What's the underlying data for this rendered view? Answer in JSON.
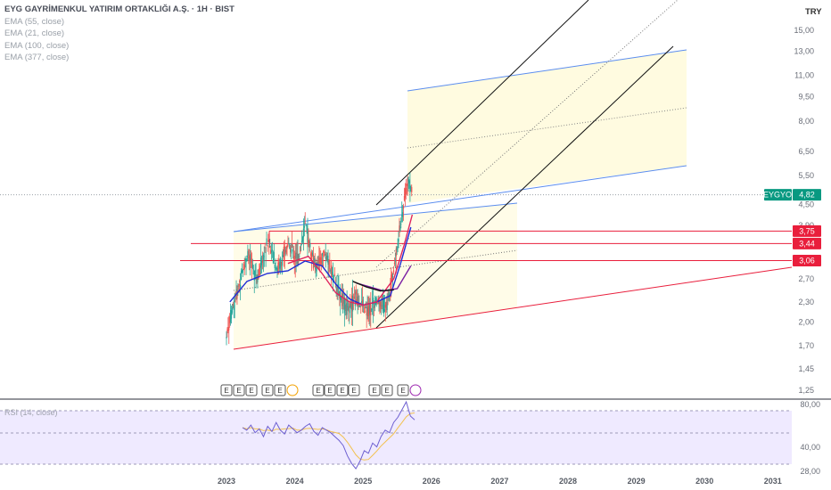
{
  "legend": {
    "title": "EYG GAYRİMENKUL YATIRIM ORTAKLIĞI A.Ş. · 1H · BIST",
    "lines": [
      "EMA (55, close)",
      "EMA (21, close)",
      "EMA (100, close)",
      "EMA (377, close)"
    ]
  },
  "currency": "TRY",
  "rsi_label": "RSI (14, close)",
  "symbol_tag": "EYGYO",
  "colors": {
    "candle_up": "#26a69a",
    "candle_down": "#ef5350",
    "ema55": "#1e2bd6",
    "ema21": "#e0245e",
    "ema100": "#7b1fa2",
    "ema377": "#111111",
    "channel_blue": "#5b8def",
    "red_line": "#e91e3c",
    "fill_yellow": "#fffbe0",
    "rsi_line": "#6d5fd0",
    "rsi_ma": "#f2c14e",
    "rsi_band": "#efeaff"
  },
  "chart_data": {
    "type": "candlestick",
    "title": "EYG GAYRİMENKUL YATIRIM ORTAKLIĞI A.Ş. · 1H · BIST",
    "currency": "TRY",
    "price_ticks": [
      "15,00",
      "13,00",
      "11,00",
      "9,50",
      "8,00",
      "6,50",
      "5,50",
      "4,50",
      "3,90",
      "2,70",
      "2,30",
      "2,00",
      "1,70",
      "1,45",
      "1,25"
    ],
    "year_ticks": [
      "2023",
      "2024",
      "2025",
      "2026",
      "2027",
      "2028",
      "2029",
      "2030",
      "2031"
    ],
    "last_price": {
      "symbol": "EYGYO",
      "value": "4,82"
    },
    "horizontal_levels": [
      "3,75",
      "3,44",
      "3,06"
    ],
    "price_range": [
      1.2,
      16.5
    ],
    "scale": "log",
    "ohlc_path": [
      [
        2023.0,
        1.85
      ],
      [
        2023.15,
        2.45
      ],
      [
        2023.3,
        3.2
      ],
      [
        2023.45,
        2.7
      ],
      [
        2023.6,
        3.5
      ],
      [
        2023.75,
        2.9
      ],
      [
        2023.9,
        3.4
      ],
      [
        2024.05,
        3.1
      ],
      [
        2024.15,
        3.9
      ],
      [
        2024.3,
        2.9
      ],
      [
        2024.45,
        3.2
      ],
      [
        2024.6,
        2.6
      ],
      [
        2024.75,
        2.2
      ],
      [
        2024.9,
        2.35
      ],
      [
        2025.05,
        2.15
      ],
      [
        2025.2,
        2.3
      ],
      [
        2025.35,
        2.25
      ],
      [
        2025.45,
        2.9
      ],
      [
        2025.55,
        3.9
      ],
      [
        2025.65,
        5.4
      ],
      [
        2025.72,
        4.82
      ]
    ],
    "rsi": {
      "label": "RSI (14, close)",
      "ticks": [
        "80,00",
        "40,00",
        "28,00"
      ],
      "values": [
        62,
        60,
        64,
        58,
        61,
        55,
        63,
        59,
        66,
        60,
        57,
        64,
        61,
        58,
        60,
        63,
        65,
        59,
        56,
        62,
        60,
        58,
        55,
        52,
        48,
        40,
        34,
        30,
        36,
        44,
        42,
        50,
        47,
        55,
        60,
        58,
        66,
        70,
        76,
        82,
        71,
        68
      ]
    },
    "ema_series": [
      {
        "name": "EMA (55, close)",
        "points": [
          [
            2023.05,
            2.3
          ],
          [
            2023.3,
            2.65
          ],
          [
            2023.6,
            2.8
          ],
          [
            2023.9,
            2.85
          ],
          [
            2024.15,
            3.05
          ],
          [
            2024.4,
            2.95
          ],
          [
            2024.6,
            2.6
          ],
          [
            2024.8,
            2.35
          ],
          [
            2025.0,
            2.25
          ],
          [
            2025.2,
            2.3
          ],
          [
            2025.4,
            2.4
          ],
          [
            2025.55,
            3.0
          ],
          [
            2025.7,
            3.85
          ]
        ]
      },
      {
        "name": "EMA (21, close)",
        "points": [
          [
            2023.9,
            3.0
          ],
          [
            2024.2,
            3.15
          ],
          [
            2024.4,
            2.8
          ],
          [
            2024.6,
            2.45
          ],
          [
            2024.8,
            2.3
          ],
          [
            2025.0,
            2.25
          ],
          [
            2025.2,
            2.3
          ],
          [
            2025.45,
            2.7
          ],
          [
            2025.6,
            3.4
          ],
          [
            2025.72,
            4.2
          ]
        ]
      },
      {
        "name": "EMA (100, close)",
        "points": [
          [
            2024.9,
            2.62
          ],
          [
            2025.1,
            2.55
          ],
          [
            2025.3,
            2.48
          ],
          [
            2025.5,
            2.52
          ],
          [
            2025.7,
            2.95
          ]
        ]
      },
      {
        "name": "EMA (377, close)",
        "points": [
          [
            2024.85,
            2.65
          ],
          [
            2025.05,
            2.55
          ],
          [
            2025.25,
            2.48
          ],
          [
            2025.45,
            2.5
          ]
        ]
      }
    ],
    "events_row": [
      "E",
      "E",
      "E",
      "E",
      "E",
      "E",
      "E",
      "E",
      "E",
      "E",
      "E",
      "E"
    ]
  }
}
